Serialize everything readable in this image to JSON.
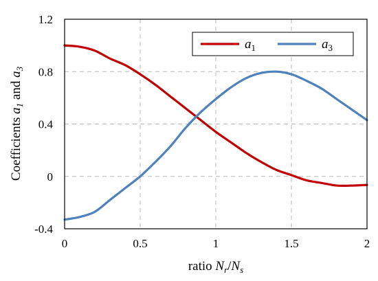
{
  "chart_data": {
    "type": "line",
    "xlabel": {
      "prefix": "ratio ",
      "main1": "N",
      "sub1": "r",
      "sep": "/",
      "main2": "N",
      "sub2": "s"
    },
    "ylabel": {
      "prefix": "Coefficients ",
      "main1": "a",
      "sub1": "1",
      "mid": " and ",
      "main2": "a",
      "sub2": "3"
    },
    "xlim": [
      0,
      2
    ],
    "ylim": [
      -0.4,
      1.2
    ],
    "x_ticks": [
      0,
      0.5,
      1,
      1.5,
      2
    ],
    "x_tick_labels": [
      "0",
      "0.5",
      "1",
      "1.5",
      "2"
    ],
    "y_ticks": [
      -0.4,
      0,
      0.4,
      0.8,
      1.2
    ],
    "y_tick_labels": [
      "-0.4",
      "0",
      "0.4",
      "0.8",
      "1.2"
    ],
    "grid": true,
    "legend_position": "top-right",
    "series": [
      {
        "name": "a",
        "name_sub": "1",
        "color": "#c00000",
        "x": [
          0,
          0.1,
          0.2,
          0.3,
          0.4,
          0.5,
          0.6,
          0.7,
          0.8,
          0.9,
          1.0,
          1.1,
          1.2,
          1.3,
          1.4,
          1.5,
          1.6,
          1.7,
          1.8,
          1.9,
          2.0
        ],
        "y": [
          1.0,
          0.99,
          0.96,
          0.9,
          0.85,
          0.78,
          0.7,
          0.61,
          0.52,
          0.43,
          0.34,
          0.26,
          0.18,
          0.11,
          0.05,
          0.01,
          -0.03,
          -0.05,
          -0.07,
          -0.07,
          -0.065
        ]
      },
      {
        "name": "a",
        "name_sub": "3",
        "color": "#4f81bd",
        "x": [
          0,
          0.1,
          0.2,
          0.3,
          0.4,
          0.5,
          0.6,
          0.7,
          0.8,
          0.9,
          1.0,
          1.1,
          1.2,
          1.3,
          1.4,
          1.5,
          1.6,
          1.7,
          1.8,
          1.9,
          2.0
        ],
        "y": [
          -0.33,
          -0.31,
          -0.27,
          -0.18,
          -0.09,
          0.0,
          0.11,
          0.23,
          0.37,
          0.49,
          0.59,
          0.68,
          0.75,
          0.79,
          0.8,
          0.78,
          0.73,
          0.67,
          0.59,
          0.51,
          0.43
        ]
      }
    ]
  }
}
